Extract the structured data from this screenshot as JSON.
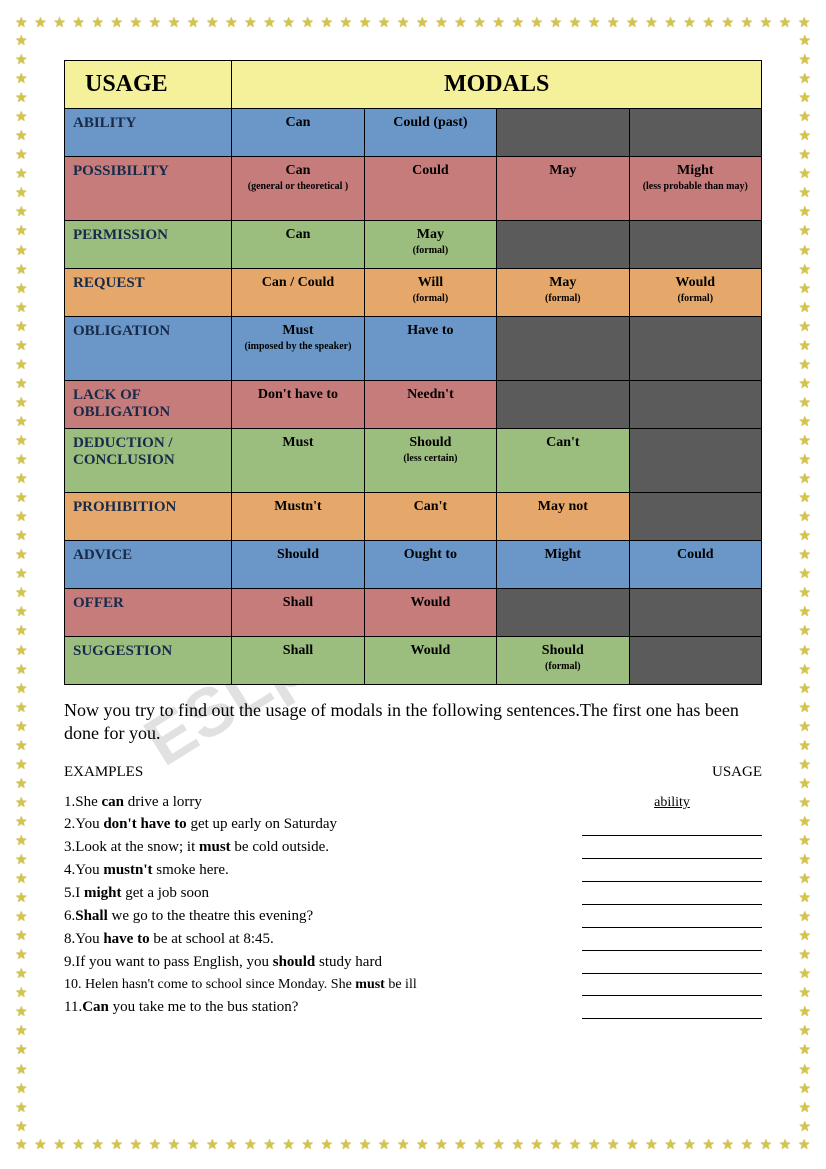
{
  "colors": {
    "header_bg": "#f5f19a",
    "blue": "#6a97c7",
    "red": "#c77c7c",
    "green": "#9bbd7e",
    "orange": "#e6a86a",
    "dark": "#5b5b5b",
    "cat_text": "#172a4a",
    "star": "#d4c547"
  },
  "header": {
    "usage": "USAGE",
    "modals": "MODALS"
  },
  "rows": [
    {
      "cat": "ABILITY",
      "bg": "bg-blue",
      "cells": [
        {
          "main": "Can"
        },
        {
          "main": "Could (past)"
        },
        {
          "dark": true
        },
        {
          "dark": true
        }
      ]
    },
    {
      "cat": "POSSIBILITY",
      "bg": "bg-red",
      "tall": true,
      "cells": [
        {
          "main": "Can",
          "sub": "(general or theoretical )"
        },
        {
          "main": "Could"
        },
        {
          "main": "May"
        },
        {
          "main": "Might",
          "sub": "(less probable than may)"
        }
      ]
    },
    {
      "cat": "PERMISSION",
      "bg": "bg-green",
      "cells": [
        {
          "main": "Can"
        },
        {
          "main": "May",
          "sub": "(formal)"
        },
        {
          "dark": true
        },
        {
          "dark": true
        }
      ]
    },
    {
      "cat": "REQUEST",
      "bg": "bg-orange",
      "cells": [
        {
          "main": "Can / Could"
        },
        {
          "main": "Will",
          "sub": "(formal)"
        },
        {
          "main": "May",
          "sub": "(formal)"
        },
        {
          "main": "Would",
          "sub": "(formal)"
        }
      ]
    },
    {
      "cat": "OBLIGATION",
      "bg": "bg-blue",
      "tall": true,
      "cells": [
        {
          "main": "Must",
          "sub": "(imposed by the speaker)"
        },
        {
          "main": "Have to"
        },
        {
          "dark": true
        },
        {
          "dark": true
        }
      ]
    },
    {
      "cat": "LACK OF OBLIGATION",
      "bg": "bg-red",
      "cells": [
        {
          "main": "Don't have to"
        },
        {
          "main": "Needn't"
        },
        {
          "dark": true
        },
        {
          "dark": true
        }
      ]
    },
    {
      "cat": "DEDUCTION / CONCLUSION",
      "bg": "bg-green",
      "tall": true,
      "cells": [
        {
          "main": "Must"
        },
        {
          "main": "Should",
          "sub": "(less certain)"
        },
        {
          "main": "Can't"
        },
        {
          "dark": true
        }
      ]
    },
    {
      "cat": "PROHIBITION",
      "bg": "bg-orange",
      "cells": [
        {
          "main": "Mustn't"
        },
        {
          "main": "Can't"
        },
        {
          "main": "May not"
        },
        {
          "dark": true
        }
      ]
    },
    {
      "cat": "ADVICE",
      "bg": "bg-blue",
      "cells": [
        {
          "main": "Should"
        },
        {
          "main": "Ought to"
        },
        {
          "main": "Might"
        },
        {
          "main": "Could"
        }
      ]
    },
    {
      "cat": "OFFER",
      "bg": "bg-red",
      "cells": [
        {
          "main": "Shall"
        },
        {
          "main": "Would"
        },
        {
          "dark": true
        },
        {
          "dark": true
        }
      ]
    },
    {
      "cat": "SUGGESTION",
      "bg": "bg-green",
      "cells": [
        {
          "main": "Shall"
        },
        {
          "main": "Would"
        },
        {
          "main": "Should",
          "sub": "(formal)"
        },
        {
          "dark": true
        }
      ]
    }
  ],
  "instruction": "Now you try to find out the usage of modals in the following sentences.The first one has been done for you.",
  "ex_header": {
    "left": "EXAMPLES",
    "right": "USAGE"
  },
  "examples": [
    {
      "n": "1.",
      "html": "She <b>can</b> drive a lorry",
      "ans": "ability",
      "given": true
    },
    {
      "n": "2.",
      "html": "You <b>don't have to</b> get up early on Saturday",
      "ans": ""
    },
    {
      "n": "3.",
      "html": "Look at the snow; it <b>must</b> be cold outside.",
      "ans": ""
    },
    {
      "n": "4.",
      "html": "You <b>mustn't</b> smoke here.",
      "ans": ""
    },
    {
      "n": "5.",
      "html": "I <b>might</b> get a job soon",
      "ans": ""
    },
    {
      "n": "6.",
      "html": "<b>Shall</b> we go to the theatre this evening?",
      "ans": ""
    },
    {
      "n": "8.",
      "html": "You <b>have to</b> be at school at 8:45.",
      "ans": ""
    },
    {
      "n": "9.",
      "html": "If you want to pass English, you <b>should</b> study hard",
      "ans": ""
    },
    {
      "n": "10.",
      "html": " Helen hasn't come to school since Monday. She <b>must</b> be ill",
      "ans": "",
      "light": true
    },
    {
      "n": "11.",
      "html": "<b>Can</b> you take me to the bus station?",
      "ans": ""
    }
  ],
  "watermark": "ESLprintables.com",
  "star_counts": {
    "horizontal": 42,
    "vertical": 58
  }
}
